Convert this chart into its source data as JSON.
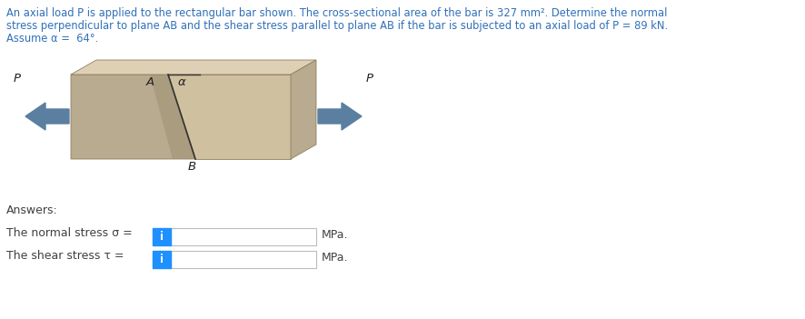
{
  "title_line1": "An axial load P is applied to the rectangular bar shown. The cross-sectional area of the bar is 327 mm². Determine the normal",
  "title_line2": "stress perpendicular to plane AB and the shear stress parallel to plane AB if the bar is subjected to an axial load of P = 89 kN.",
  "title_line3": "Assume α =  64°.",
  "answers_label": "Answers:",
  "normal_stress_label": "The normal stress σ =",
  "shear_stress_label": "The shear stress τ =",
  "mpa_label": "MPa.",
  "text_color": "#3070b8",
  "answer_text_color": "#404040",
  "background_color": "#ffffff",
  "box_color": "#1e90ff",
  "bar_face_color_left": "#b8ab90",
  "bar_face_color_right": "#cfc0a0",
  "bar_top_color": "#ddd0b5",
  "bar_side_color": "#b8ab90",
  "bar_cut_shadow": "#a89878",
  "arrow_color": "#5a7fa0",
  "label_color": "#222222"
}
